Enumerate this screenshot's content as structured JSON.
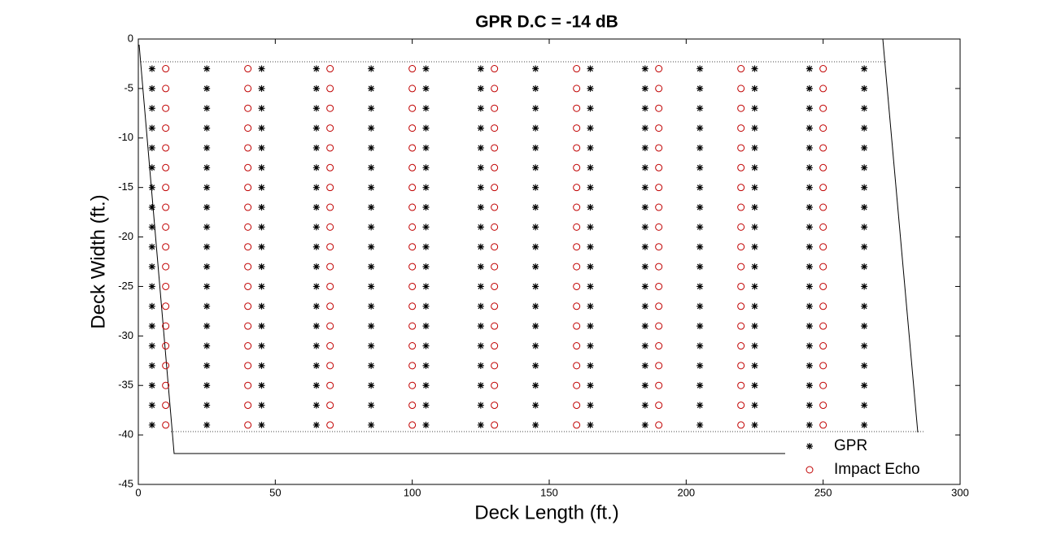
{
  "chart_data": {
    "type": "scatter",
    "title": "GPR D.C = -14 dB",
    "xlabel": "Deck Length (ft.)",
    "ylabel": "Deck Width (ft.)",
    "xlim": [
      0,
      300
    ],
    "ylim": [
      -45,
      0
    ],
    "xticks": [
      0,
      50,
      100,
      150,
      200,
      250,
      300
    ],
    "yticks": [
      0,
      -5,
      -10,
      -15,
      -20,
      -25,
      -30,
      -35,
      -40,
      -45
    ],
    "legend": "lower right",
    "series": [
      {
        "name": "GPR",
        "color": "#000000",
        "marker": "star",
        "x": [
          5,
          25,
          45,
          65,
          85,
          105,
          125,
          145,
          165,
          185,
          205,
          225,
          245,
          265,
          5,
          25,
          45,
          65,
          85,
          105,
          125,
          145,
          165,
          185,
          205,
          225,
          245,
          265,
          5,
          25,
          45,
          65,
          85,
          105,
          125,
          145,
          165,
          185,
          205,
          225,
          245,
          265,
          5,
          25,
          45,
          65,
          85,
          105,
          125,
          145,
          165,
          185,
          205,
          225,
          245,
          265,
          5,
          25,
          45,
          65,
          85,
          105,
          125,
          145,
          165,
          185,
          205,
          225,
          245,
          265,
          5,
          25,
          45,
          65,
          85,
          105,
          125,
          145,
          165,
          185,
          205,
          225,
          245,
          265,
          5,
          25,
          45,
          65,
          85,
          105,
          125,
          145,
          165,
          185,
          205,
          225,
          245,
          265,
          5,
          25,
          45,
          65,
          85,
          105,
          125,
          145,
          165,
          185,
          205,
          225,
          245,
          265,
          5,
          25,
          45,
          65,
          85,
          105,
          125,
          145,
          165,
          185,
          205,
          225,
          245,
          265,
          5,
          25,
          45,
          65,
          85,
          105,
          125,
          145,
          165,
          185,
          205,
          225,
          245,
          265,
          5,
          25,
          45,
          65,
          85,
          105,
          125,
          145,
          165,
          185,
          205,
          225,
          245,
          265,
          5,
          25,
          45,
          65,
          85,
          105,
          125,
          145,
          165,
          185,
          205,
          225,
          245,
          265,
          5,
          25,
          45,
          65,
          85,
          105,
          125,
          145,
          165,
          185,
          205,
          225,
          245,
          265,
          5,
          25,
          45,
          65,
          85,
          105,
          125,
          145,
          165,
          185,
          205,
          225,
          245,
          265,
          5,
          25,
          45,
          65,
          85,
          105,
          125,
          145,
          165,
          185,
          205,
          225,
          245,
          265,
          5,
          25,
          45,
          65,
          85,
          105,
          125,
          145,
          165,
          185,
          205,
          225,
          245,
          265,
          5,
          25,
          45,
          65,
          85,
          105,
          125,
          145,
          165,
          185,
          205,
          225,
          245,
          265,
          5,
          25,
          45,
          65,
          85,
          105,
          125,
          145,
          165,
          185,
          205,
          225,
          245,
          265,
          5,
          25,
          45,
          65,
          85,
          105,
          125,
          145,
          165,
          185,
          205,
          225,
          245,
          265
        ],
        "y": [
          -3,
          -3,
          -3,
          -3,
          -3,
          -3,
          -3,
          -3,
          -3,
          -3,
          -3,
          -3,
          -3,
          -3,
          -5,
          -5,
          -5,
          -5,
          -5,
          -5,
          -5,
          -5,
          -5,
          -5,
          -5,
          -5,
          -5,
          -5,
          -7,
          -7,
          -7,
          -7,
          -7,
          -7,
          -7,
          -7,
          -7,
          -7,
          -7,
          -7,
          -7,
          -7,
          -9,
          -9,
          -9,
          -9,
          -9,
          -9,
          -9,
          -9,
          -9,
          -9,
          -9,
          -9,
          -9,
          -9,
          -11,
          -11,
          -11,
          -11,
          -11,
          -11,
          -11,
          -11,
          -11,
          -11,
          -11,
          -11,
          -11,
          -11,
          -13,
          -13,
          -13,
          -13,
          -13,
          -13,
          -13,
          -13,
          -13,
          -13,
          -13,
          -13,
          -13,
          -13,
          -15,
          -15,
          -15,
          -15,
          -15,
          -15,
          -15,
          -15,
          -15,
          -15,
          -15,
          -15,
          -15,
          -15,
          -17,
          -17,
          -17,
          -17,
          -17,
          -17,
          -17,
          -17,
          -17,
          -17,
          -17,
          -17,
          -17,
          -17,
          -19,
          -19,
          -19,
          -19,
          -19,
          -19,
          -19,
          -19,
          -19,
          -19,
          -19,
          -19,
          -19,
          -19,
          -21,
          -21,
          -21,
          -21,
          -21,
          -21,
          -21,
          -21,
          -21,
          -21,
          -21,
          -21,
          -21,
          -21,
          -23,
          -23,
          -23,
          -23,
          -23,
          -23,
          -23,
          -23,
          -23,
          -23,
          -23,
          -23,
          -23,
          -23,
          -25,
          -25,
          -25,
          -25,
          -25,
          -25,
          -25,
          -25,
          -25,
          -25,
          -25,
          -25,
          -25,
          -25,
          -27,
          -27,
          -27,
          -27,
          -27,
          -27,
          -27,
          -27,
          -27,
          -27,
          -27,
          -27,
          -27,
          -27,
          -29,
          -29,
          -29,
          -29,
          -29,
          -29,
          -29,
          -29,
          -29,
          -29,
          -29,
          -29,
          -29,
          -29,
          -31,
          -31,
          -31,
          -31,
          -31,
          -31,
          -31,
          -31,
          -31,
          -31,
          -31,
          -31,
          -31,
          -31,
          -33,
          -33,
          -33,
          -33,
          -33,
          -33,
          -33,
          -33,
          -33,
          -33,
          -33,
          -33,
          -33,
          -33,
          -35,
          -35,
          -35,
          -35,
          -35,
          -35,
          -35,
          -35,
          -35,
          -35,
          -35,
          -35,
          -35,
          -35,
          -37,
          -37,
          -37,
          -37,
          -37,
          -37,
          -37,
          -37,
          -37,
          -37,
          -37,
          -37,
          -37,
          -37,
          -39,
          -39,
          -39,
          -39,
          -39,
          -39,
          -39,
          -39,
          -39,
          -39,
          -39,
          -39,
          -39,
          -39
        ]
      },
      {
        "name": "Impact Echo",
        "color": "#c00000",
        "marker": "circle",
        "x": [
          10,
          40,
          70,
          100,
          130,
          160,
          190,
          220,
          250,
          10,
          40,
          70,
          100,
          130,
          160,
          190,
          220,
          250,
          10,
          40,
          70,
          100,
          130,
          160,
          190,
          220,
          250,
          10,
          40,
          70,
          100,
          130,
          160,
          190,
          220,
          250,
          10,
          40,
          70,
          100,
          130,
          160,
          190,
          220,
          250,
          10,
          40,
          70,
          100,
          130,
          160,
          190,
          220,
          250,
          10,
          40,
          70,
          100,
          130,
          160,
          190,
          220,
          250,
          10,
          40,
          70,
          100,
          130,
          160,
          190,
          220,
          250,
          10,
          40,
          70,
          100,
          130,
          160,
          190,
          220,
          250,
          10,
          40,
          70,
          100,
          130,
          160,
          190,
          220,
          250,
          10,
          40,
          70,
          100,
          130,
          160,
          190,
          220,
          250,
          10,
          40,
          70,
          100,
          130,
          160,
          190,
          220,
          250,
          10,
          40,
          70,
          100,
          130,
          160,
          190,
          220,
          250,
          10,
          40,
          70,
          100,
          130,
          160,
          190,
          220,
          250,
          10,
          40,
          70,
          100,
          130,
          160,
          190,
          220,
          250,
          10,
          40,
          70,
          100,
          130,
          160,
          190,
          220,
          250,
          10,
          40,
          70,
          100,
          130,
          160,
          190,
          220,
          250,
          10,
          40,
          70,
          100,
          130,
          160,
          190,
          220,
          250,
          10,
          40,
          70,
          100,
          130,
          160,
          190,
          220,
          250
        ],
        "y": [
          -3,
          -3,
          -3,
          -3,
          -3,
          -3,
          -3,
          -3,
          -3,
          -5,
          -5,
          -5,
          -5,
          -5,
          -5,
          -5,
          -5,
          -5,
          -7,
          -7,
          -7,
          -7,
          -7,
          -7,
          -7,
          -7,
          -7,
          -9,
          -9,
          -9,
          -9,
          -9,
          -9,
          -9,
          -9,
          -9,
          -11,
          -11,
          -11,
          -11,
          -11,
          -11,
          -11,
          -11,
          -11,
          -13,
          -13,
          -13,
          -13,
          -13,
          -13,
          -13,
          -13,
          -13,
          -15,
          -15,
          -15,
          -15,
          -15,
          -15,
          -15,
          -15,
          -15,
          -17,
          -17,
          -17,
          -17,
          -17,
          -17,
          -17,
          -17,
          -17,
          -19,
          -19,
          -19,
          -19,
          -19,
          -19,
          -19,
          -19,
          -19,
          -21,
          -21,
          -21,
          -21,
          -21,
          -21,
          -21,
          -21,
          -21,
          -23,
          -23,
          -23,
          -23,
          -23,
          -23,
          -23,
          -23,
          -23,
          -25,
          -25,
          -25,
          -25,
          -25,
          -25,
          -25,
          -25,
          -25,
          -27,
          -27,
          -27,
          -27,
          -27,
          -27,
          -27,
          -27,
          -27,
          -29,
          -29,
          -29,
          -29,
          -29,
          -29,
          -29,
          -29,
          -29,
          -31,
          -31,
          -31,
          -31,
          -31,
          -31,
          -31,
          -31,
          -31,
          -33,
          -33,
          -33,
          -33,
          -33,
          -33,
          -33,
          -33,
          -33,
          -35,
          -35,
          -35,
          -35,
          -35,
          -35,
          -35,
          -35,
          -35,
          -37,
          -37,
          -37,
          -37,
          -37,
          -37,
          -37,
          -37,
          -37,
          -39,
          -39,
          -39,
          -39,
          -39,
          -39,
          -39,
          -39,
          -39
        ]
      }
    ]
  }
}
